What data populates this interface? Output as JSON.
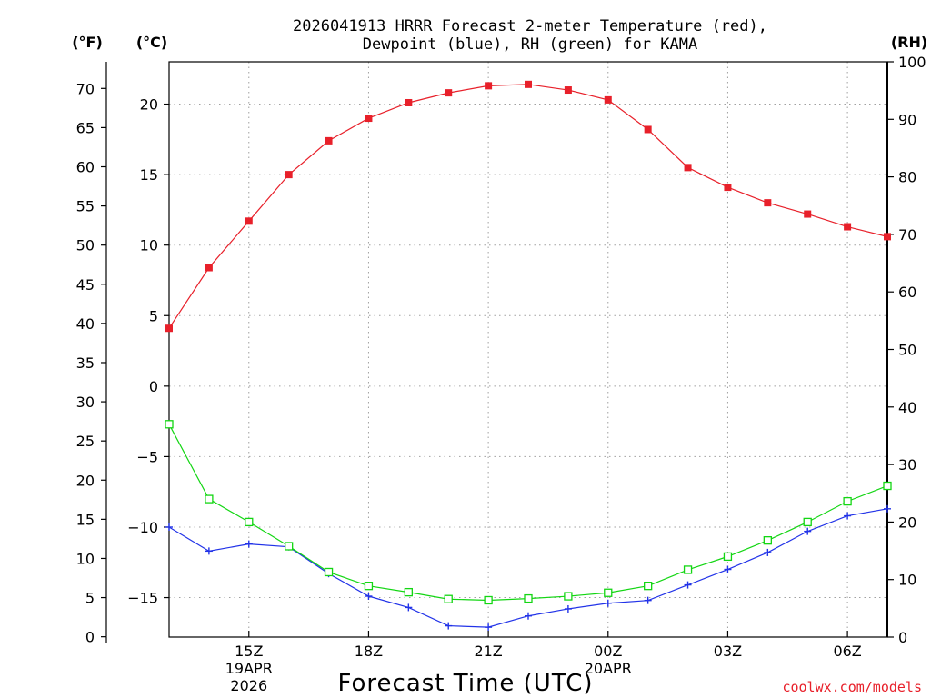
{
  "title_line1": "2026041913 HRRR Forecast 2-meter Temperature (red),",
  "title_line2": "Dewpoint (blue), RH (green) for KAMA",
  "unit_f": "(°F)",
  "unit_c": "(°C)",
  "unit_rh": "(RH)",
  "x_title": "Forecast Time (UTC)",
  "credit": "coolwx.com/models",
  "colors": {
    "temperature": "#e8202a",
    "dewpoint": "#2233e8",
    "rh": "#13d613",
    "grid": "#a0a0a0"
  },
  "chart_data": {
    "type": "line",
    "title": "2026041913 HRRR Forecast 2-meter Temperature (red), Dewpoint (blue), RH (green) for KAMA",
    "xlabel": "Forecast Time (UTC)",
    "station": "KAMA",
    "x_hours": [
      13,
      14,
      15,
      16,
      17,
      18,
      19,
      20,
      21,
      22,
      23,
      24,
      25,
      26,
      27,
      28,
      29,
      30,
      31
    ],
    "x_ticks": [
      {
        "hour": 15,
        "lines": [
          "15Z",
          "19APR",
          "2026"
        ]
      },
      {
        "hour": 18,
        "lines": [
          "18Z"
        ]
      },
      {
        "hour": 21,
        "lines": [
          "21Z"
        ]
      },
      {
        "hour": 24,
        "lines": [
          "00Z",
          "20APR"
        ]
      },
      {
        "hour": 27,
        "lines": [
          "03Z"
        ]
      },
      {
        "hour": 30,
        "lines": [
          "06Z"
        ]
      }
    ],
    "xlim": [
      13,
      31
    ],
    "left_axis_f": {
      "label": "(°F)",
      "ticks": [
        0,
        5,
        10,
        15,
        20,
        25,
        30,
        35,
        40,
        45,
        50,
        55,
        60,
        65,
        70
      ]
    },
    "left_axis_c": {
      "label": "(°C)",
      "ticks": [
        -15,
        -10,
        -5,
        0,
        5,
        10,
        15,
        20
      ],
      "range": [
        -17.8,
        23.0
      ]
    },
    "right_axis_rh": {
      "label": "(RH)",
      "ticks": [
        0,
        10,
        20,
        30,
        40,
        50,
        60,
        70,
        80,
        90,
        100
      ],
      "range": [
        0,
        100
      ]
    },
    "series": [
      {
        "name": "Temperature",
        "unit": "C",
        "axis": "celsius",
        "color": "red",
        "marker": "filled-square",
        "values": [
          4.1,
          8.4,
          11.7,
          15.0,
          17.4,
          19.0,
          20.1,
          20.8,
          21.3,
          21.4,
          21.0,
          20.3,
          18.2,
          15.5,
          14.1,
          13.0,
          12.2,
          11.3,
          10.6
        ]
      },
      {
        "name": "Dewpoint",
        "unit": "C",
        "axis": "celsius",
        "color": "blue",
        "marker": "plus",
        "values": [
          -10.0,
          -11.7,
          -11.2,
          -11.4,
          -13.3,
          -14.9,
          -15.7,
          -17.0,
          -17.1,
          -16.3,
          -15.8,
          -15.4,
          -15.2,
          -14.1,
          -13.0,
          -11.8,
          -10.3,
          -9.2,
          -8.7
        ]
      },
      {
        "name": "RH",
        "unit": "%",
        "axis": "rh",
        "color": "green",
        "marker": "open-square",
        "values": [
          37.0,
          24.0,
          20.0,
          15.8,
          11.3,
          8.9,
          7.8,
          6.6,
          6.4,
          6.7,
          7.1,
          7.7,
          8.9,
          11.7,
          14.0,
          16.8,
          20.0,
          23.6,
          26.3
        ]
      }
    ]
  }
}
